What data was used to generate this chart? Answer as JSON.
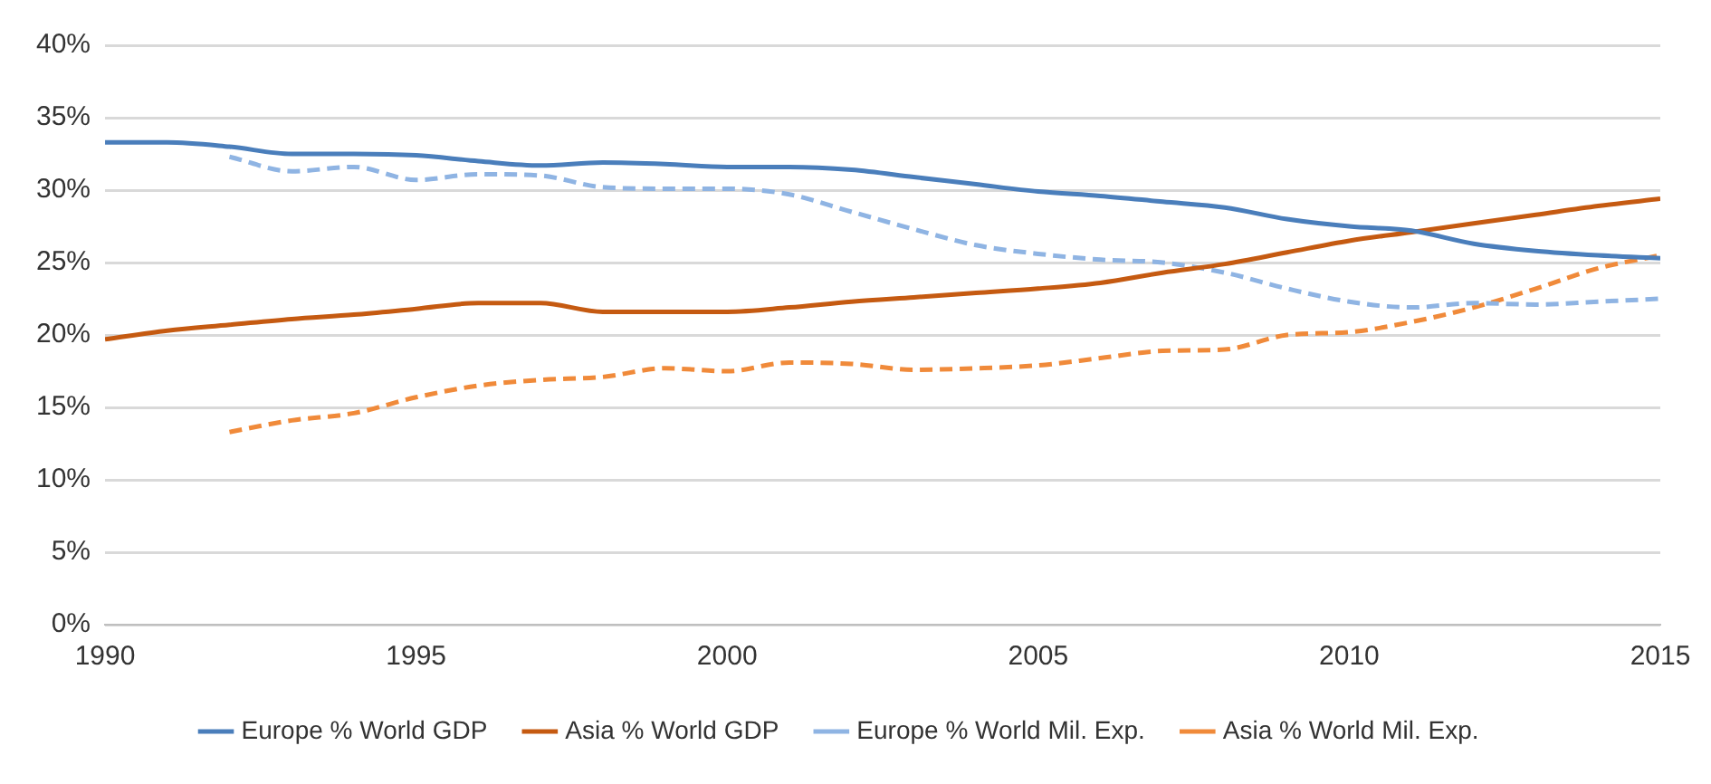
{
  "chart_data": {
    "type": "line",
    "x": [
      1990,
      1991,
      1992,
      1993,
      1994,
      1995,
      1996,
      1997,
      1998,
      1999,
      2000,
      2001,
      2002,
      2003,
      2004,
      2005,
      2006,
      2007,
      2008,
      2009,
      2010,
      2011,
      2012,
      2013,
      2014,
      2015
    ],
    "series": [
      {
        "name": "Europe % World GDP",
        "color": "#4a7ebb",
        "line_style": "solid",
        "values": [
          33.3,
          33.3,
          33.0,
          32.5,
          32.5,
          32.4,
          32.0,
          31.7,
          31.9,
          31.8,
          31.6,
          31.6,
          31.4,
          30.9,
          30.4,
          29.9,
          29.6,
          29.2,
          28.8,
          28.0,
          27.5,
          27.2,
          26.3,
          25.8,
          25.5,
          25.3
        ]
      },
      {
        "name": "Asia % World GDP",
        "color": "#c55a11",
        "line_style": "solid",
        "values": [
          19.7,
          20.3,
          20.7,
          21.1,
          21.4,
          21.8,
          22.2,
          22.2,
          21.6,
          21.6,
          21.6,
          21.9,
          22.3,
          22.6,
          22.9,
          23.2,
          23.6,
          24.3,
          24.9,
          25.7,
          26.5,
          27.1,
          27.7,
          28.3,
          28.9,
          29.4
        ]
      },
      {
        "name": "Europe % World Mil. Exp.",
        "color": "#8fb4e3",
        "line_style": "dashed",
        "values": [
          null,
          null,
          32.3,
          31.3,
          31.6,
          30.7,
          31.1,
          31.0,
          30.2,
          30.1,
          30.1,
          29.7,
          28.5,
          27.3,
          26.2,
          25.6,
          25.2,
          25.0,
          24.3,
          23.2,
          22.3,
          21.9,
          22.2,
          22.1,
          22.3,
          22.5
        ]
      },
      {
        "name": "Asia % World Mil. Exp.",
        "color": "#f08a3a",
        "line_style": "dashed",
        "values": [
          null,
          null,
          13.3,
          14.1,
          14.6,
          15.7,
          16.5,
          16.9,
          17.1,
          17.7,
          17.5,
          18.1,
          18.0,
          17.6,
          17.7,
          17.9,
          18.4,
          18.9,
          19.0,
          20.0,
          20.2,
          20.9,
          21.9,
          23.2,
          24.6,
          25.5
        ]
      }
    ],
    "xlim": [
      1990,
      2015
    ],
    "xticks": [
      1990,
      1995,
      2000,
      2005,
      2010,
      2015
    ],
    "ylim": [
      0,
      40
    ],
    "yticks": [
      {
        "value": 0,
        "label": "0%"
      },
      {
        "value": 5,
        "label": "5%"
      },
      {
        "value": 10,
        "label": "10%"
      },
      {
        "value": 15,
        "label": "15%"
      },
      {
        "value": 20,
        "label": "20%"
      },
      {
        "value": 25,
        "label": "25%"
      },
      {
        "value": 30,
        "label": "30%"
      },
      {
        "value": 35,
        "label": "35%"
      },
      {
        "value": 40,
        "label": "40%"
      }
    ],
    "grid": "y",
    "legend": "bottom",
    "marker": "none"
  }
}
